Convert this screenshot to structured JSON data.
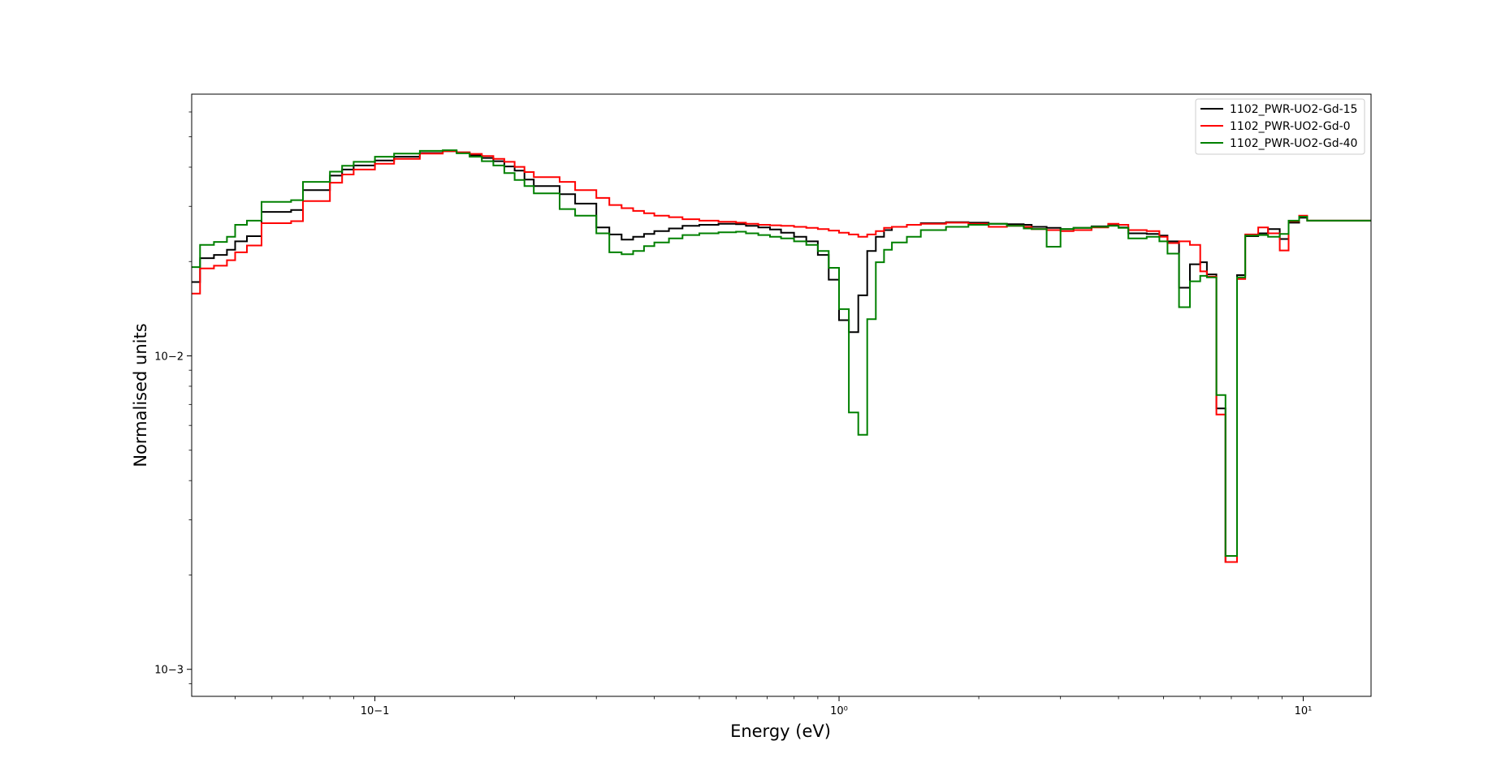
{
  "chart_data": {
    "type": "line",
    "step": true,
    "xlabel": "Energy (eV)",
    "ylabel": "Normalised units",
    "xscale": "log",
    "yscale": "log",
    "xlim": [
      0.0403,
      14.0
    ],
    "ylim": [
      0.00082,
      0.0684
    ],
    "xticks": [
      {
        "value": 0.1,
        "label": "10−1"
      },
      {
        "value": 1,
        "label": "10⁰"
      },
      {
        "value": 10,
        "label": "10¹"
      }
    ],
    "yticks": [
      {
        "value": 0.001,
        "label": "10−3"
      },
      {
        "value": 0.01,
        "label": "10−2"
      }
    ],
    "grid": false,
    "legend_position": "top-right",
    "series": [
      {
        "name": "1102_PWR-UO2-Gd-15",
        "color": "#000000",
        "points": [
          [
            0.0403,
            0.0172
          ],
          [
            0.042,
            0.0205
          ],
          [
            0.045,
            0.021
          ],
          [
            0.048,
            0.0218
          ],
          [
            0.05,
            0.0232
          ],
          [
            0.053,
            0.0241
          ],
          [
            0.057,
            0.0288
          ],
          [
            0.066,
            0.0292
          ],
          [
            0.07,
            0.0338
          ],
          [
            0.08,
            0.0376
          ],
          [
            0.085,
            0.0393
          ],
          [
            0.09,
            0.0405
          ],
          [
            0.1,
            0.042
          ],
          [
            0.11,
            0.0432
          ],
          [
            0.125,
            0.0444
          ],
          [
            0.14,
            0.045
          ],
          [
            0.15,
            0.0446
          ],
          [
            0.16,
            0.0436
          ],
          [
            0.17,
            0.0428
          ],
          [
            0.18,
            0.0418
          ],
          [
            0.19,
            0.0402
          ],
          [
            0.2,
            0.039
          ],
          [
            0.21,
            0.0365
          ],
          [
            0.22,
            0.0348
          ],
          [
            0.25,
            0.0328
          ],
          [
            0.27,
            0.0306
          ],
          [
            0.3,
            0.0257
          ],
          [
            0.32,
            0.0244
          ],
          [
            0.34,
            0.0235
          ],
          [
            0.36,
            0.024
          ],
          [
            0.38,
            0.0245
          ],
          [
            0.4,
            0.025
          ],
          [
            0.43,
            0.0255
          ],
          [
            0.46,
            0.026
          ],
          [
            0.5,
            0.0262
          ],
          [
            0.55,
            0.0264
          ],
          [
            0.6,
            0.0263
          ],
          [
            0.63,
            0.026
          ],
          [
            0.67,
            0.0257
          ],
          [
            0.71,
            0.0253
          ],
          [
            0.75,
            0.0247
          ],
          [
            0.8,
            0.024
          ],
          [
            0.85,
            0.0232
          ],
          [
            0.9,
            0.021
          ],
          [
            0.95,
            0.0175
          ],
          [
            1.0,
            0.013
          ],
          [
            1.05,
            0.0119
          ],
          [
            1.1,
            0.0156
          ],
          [
            1.15,
            0.0216
          ],
          [
            1.2,
            0.024
          ],
          [
            1.25,
            0.0252
          ],
          [
            1.3,
            0.0258
          ],
          [
            1.4,
            0.0262
          ],
          [
            1.5,
            0.0265
          ],
          [
            1.7,
            0.0267
          ],
          [
            1.9,
            0.0266
          ],
          [
            2.1,
            0.0264
          ],
          [
            2.3,
            0.0263
          ],
          [
            2.5,
            0.0262
          ],
          [
            2.6,
            0.0258
          ],
          [
            2.8,
            0.0256
          ],
          [
            3.0,
            0.0254
          ],
          [
            3.2,
            0.0256
          ],
          [
            3.5,
            0.0259
          ],
          [
            3.8,
            0.0261
          ],
          [
            4.0,
            0.0257
          ],
          [
            4.2,
            0.0246
          ],
          [
            4.6,
            0.0245
          ],
          [
            4.9,
            0.0242
          ],
          [
            5.1,
            0.0232
          ],
          [
            5.4,
            0.0165
          ],
          [
            5.7,
            0.0196
          ],
          [
            6.0,
            0.0199
          ],
          [
            6.2,
            0.0182
          ],
          [
            6.5,
            0.0068
          ],
          [
            6.8,
            0.0022
          ],
          [
            7.2,
            0.0181
          ],
          [
            7.5,
            0.0241
          ],
          [
            8.0,
            0.0246
          ],
          [
            8.4,
            0.0254
          ],
          [
            8.9,
            0.0236
          ],
          [
            9.3,
            0.0266
          ],
          [
            9.8,
            0.0276
          ],
          [
            10.2,
            0.027
          ],
          [
            14.0,
            0.027
          ]
        ]
      },
      {
        "name": "1102_PWR-UO2-Gd-0",
        "color": "#ff0000",
        "points": [
          [
            0.0403,
            0.0158
          ],
          [
            0.042,
            0.019
          ],
          [
            0.045,
            0.0194
          ],
          [
            0.048,
            0.0202
          ],
          [
            0.05,
            0.0214
          ],
          [
            0.053,
            0.0225
          ],
          [
            0.057,
            0.0265
          ],
          [
            0.066,
            0.0269
          ],
          [
            0.07,
            0.0312
          ],
          [
            0.08,
            0.0357
          ],
          [
            0.085,
            0.0379
          ],
          [
            0.09,
            0.0393
          ],
          [
            0.1,
            0.041
          ],
          [
            0.11,
            0.0425
          ],
          [
            0.125,
            0.0442
          ],
          [
            0.14,
            0.045
          ],
          [
            0.15,
            0.0446
          ],
          [
            0.16,
            0.0441
          ],
          [
            0.17,
            0.0434
          ],
          [
            0.18,
            0.0425
          ],
          [
            0.19,
            0.0416
          ],
          [
            0.2,
            0.0401
          ],
          [
            0.21,
            0.0386
          ],
          [
            0.22,
            0.0372
          ],
          [
            0.25,
            0.0359
          ],
          [
            0.27,
            0.0338
          ],
          [
            0.3,
            0.0319
          ],
          [
            0.32,
            0.0303
          ],
          [
            0.34,
            0.0296
          ],
          [
            0.36,
            0.029
          ],
          [
            0.38,
            0.0285
          ],
          [
            0.4,
            0.028
          ],
          [
            0.43,
            0.0277
          ],
          [
            0.46,
            0.0273
          ],
          [
            0.5,
            0.027
          ],
          [
            0.55,
            0.0268
          ],
          [
            0.6,
            0.0266
          ],
          [
            0.63,
            0.0264
          ],
          [
            0.67,
            0.0262
          ],
          [
            0.71,
            0.0261
          ],
          [
            0.75,
            0.026
          ],
          [
            0.8,
            0.0258
          ],
          [
            0.85,
            0.0256
          ],
          [
            0.9,
            0.0254
          ],
          [
            0.95,
            0.0251
          ],
          [
            1.0,
            0.0247
          ],
          [
            1.05,
            0.0244
          ],
          [
            1.1,
            0.024
          ],
          [
            1.15,
            0.0244
          ],
          [
            1.2,
            0.025
          ],
          [
            1.25,
            0.0256
          ],
          [
            1.3,
            0.0258
          ],
          [
            1.4,
            0.0262
          ],
          [
            1.5,
            0.0264
          ],
          [
            1.7,
            0.0266
          ],
          [
            1.9,
            0.0264
          ],
          [
            2.1,
            0.0258
          ],
          [
            2.3,
            0.026
          ],
          [
            2.5,
            0.0258
          ],
          [
            2.6,
            0.0254
          ],
          [
            2.8,
            0.0252
          ],
          [
            3.0,
            0.025
          ],
          [
            3.2,
            0.0252
          ],
          [
            3.5,
            0.0257
          ],
          [
            3.8,
            0.0264
          ],
          [
            4.0,
            0.0262
          ],
          [
            4.2,
            0.0252
          ],
          [
            4.6,
            0.025
          ],
          [
            4.9,
            0.024
          ],
          [
            5.1,
            0.0229
          ],
          [
            5.4,
            0.0232
          ],
          [
            5.7,
            0.0226
          ],
          [
            6.0,
            0.0186
          ],
          [
            6.2,
            0.0179
          ],
          [
            6.5,
            0.0065
          ],
          [
            6.8,
            0.0022
          ],
          [
            7.2,
            0.0176
          ],
          [
            7.5,
            0.0244
          ],
          [
            8.0,
            0.0257
          ],
          [
            8.4,
            0.0246
          ],
          [
            8.9,
            0.0217
          ],
          [
            9.3,
            0.0269
          ],
          [
            9.8,
            0.028
          ],
          [
            10.2,
            0.027
          ],
          [
            14.0,
            0.027
          ]
        ]
      },
      {
        "name": "1102_PWR-UO2-Gd-40",
        "color": "#008000",
        "points": [
          [
            0.0403,
            0.0192
          ],
          [
            0.042,
            0.0226
          ],
          [
            0.045,
            0.0231
          ],
          [
            0.048,
            0.024
          ],
          [
            0.05,
            0.0262
          ],
          [
            0.053,
            0.027
          ],
          [
            0.057,
            0.031
          ],
          [
            0.066,
            0.0314
          ],
          [
            0.07,
            0.0359
          ],
          [
            0.08,
            0.0387
          ],
          [
            0.085,
            0.0404
          ],
          [
            0.09,
            0.0416
          ],
          [
            0.1,
            0.0432
          ],
          [
            0.11,
            0.0442
          ],
          [
            0.125,
            0.0451
          ],
          [
            0.14,
            0.0453
          ],
          [
            0.15,
            0.0443
          ],
          [
            0.16,
            0.0432
          ],
          [
            0.17,
            0.0418
          ],
          [
            0.18,
            0.0405
          ],
          [
            0.19,
            0.0383
          ],
          [
            0.2,
            0.0364
          ],
          [
            0.21,
            0.0348
          ],
          [
            0.22,
            0.033
          ],
          [
            0.25,
            0.0294
          ],
          [
            0.27,
            0.028
          ],
          [
            0.3,
            0.0246
          ],
          [
            0.32,
            0.0214
          ],
          [
            0.34,
            0.0211
          ],
          [
            0.36,
            0.0216
          ],
          [
            0.38,
            0.0224
          ],
          [
            0.4,
            0.023
          ],
          [
            0.43,
            0.0237
          ],
          [
            0.46,
            0.0243
          ],
          [
            0.5,
            0.0246
          ],
          [
            0.55,
            0.0248
          ],
          [
            0.6,
            0.0249
          ],
          [
            0.63,
            0.0246
          ],
          [
            0.67,
            0.0243
          ],
          [
            0.71,
            0.024
          ],
          [
            0.75,
            0.0237
          ],
          [
            0.8,
            0.0232
          ],
          [
            0.85,
            0.0226
          ],
          [
            0.9,
            0.0216
          ],
          [
            0.95,
            0.0191
          ],
          [
            1.0,
            0.0141
          ],
          [
            1.05,
            0.0066
          ],
          [
            1.1,
            0.0056
          ],
          [
            1.15,
            0.0131
          ],
          [
            1.2,
            0.0199
          ],
          [
            1.25,
            0.0218
          ],
          [
            1.3,
            0.023
          ],
          [
            1.4,
            0.024
          ],
          [
            1.5,
            0.0252
          ],
          [
            1.7,
            0.0258
          ],
          [
            1.9,
            0.0262
          ],
          [
            2.1,
            0.0264
          ],
          [
            2.3,
            0.026
          ],
          [
            2.5,
            0.0255
          ],
          [
            2.6,
            0.0254
          ],
          [
            2.8,
            0.0223
          ],
          [
            3.0,
            0.0254
          ],
          [
            3.2,
            0.0256
          ],
          [
            3.5,
            0.0258
          ],
          [
            3.8,
            0.026
          ],
          [
            4.0,
            0.0256
          ],
          [
            4.2,
            0.0237
          ],
          [
            4.6,
            0.024
          ],
          [
            4.9,
            0.0232
          ],
          [
            5.1,
            0.0212
          ],
          [
            5.4,
            0.0143
          ],
          [
            5.7,
            0.0173
          ],
          [
            6.0,
            0.018
          ],
          [
            6.2,
            0.0178
          ],
          [
            6.5,
            0.0075
          ],
          [
            6.8,
            0.0023
          ],
          [
            7.2,
            0.0178
          ],
          [
            7.5,
            0.0242
          ],
          [
            8.0,
            0.0243
          ],
          [
            8.4,
            0.024
          ],
          [
            8.9,
            0.0245
          ],
          [
            9.3,
            0.027
          ],
          [
            9.8,
            0.0278
          ],
          [
            10.2,
            0.027
          ],
          [
            14.0,
            0.027
          ]
        ]
      }
    ]
  }
}
